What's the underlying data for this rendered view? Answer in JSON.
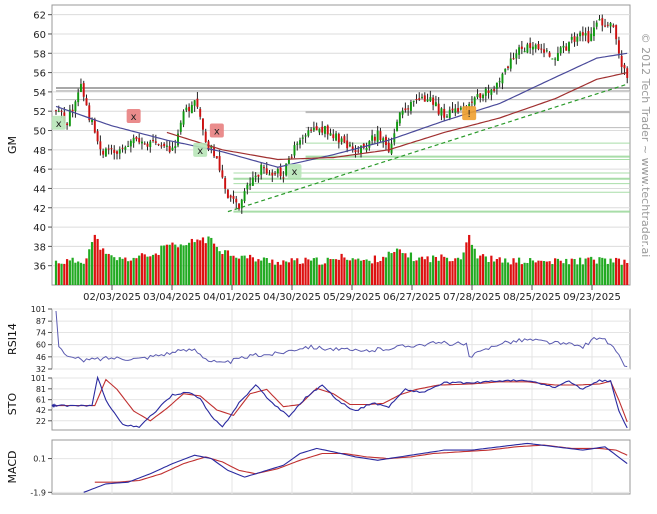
{
  "chart_data": {
    "type": "candlestick",
    "ticker": "GM",
    "watermark": "© 2012 Tech Trader ~ www.techtrader.ai",
    "x_tick_labels": [
      "02/03/2025",
      "03/04/2025",
      "04/01/2025",
      "04/30/2025",
      "05/29/2025",
      "06/27/2025",
      "07/28/2025",
      "08/25/2025",
      "09/23/2025"
    ],
    "price_axis": {
      "ylim": [
        34,
        63
      ],
      "ticks": [
        "36",
        "38",
        "40",
        "42",
        "44",
        "46",
        "48",
        "50",
        "52",
        "54",
        "56",
        "58",
        "60",
        "62"
      ]
    },
    "price_keypoints": [
      [
        0,
        52.0
      ],
      [
        4,
        51.0
      ],
      [
        9,
        54.5
      ],
      [
        12,
        51.5
      ],
      [
        16,
        48.0
      ],
      [
        22,
        47.5
      ],
      [
        27,
        49.0
      ],
      [
        30,
        48.5
      ],
      [
        36,
        48.5
      ],
      [
        42,
        48.0
      ],
      [
        46,
        51.5
      ],
      [
        50,
        53.2
      ],
      [
        54,
        49.0
      ],
      [
        58,
        47.0
      ],
      [
        62,
        43.2
      ],
      [
        66,
        42.2
      ],
      [
        70,
        44.5
      ],
      [
        74,
        46.0
      ],
      [
        78,
        45.8
      ],
      [
        82,
        45.5
      ],
      [
        86,
        48.0
      ],
      [
        90,
        49.5
      ],
      [
        94,
        50.2
      ],
      [
        98,
        50.0
      ],
      [
        104,
        48.5
      ],
      [
        110,
        48.0
      ],
      [
        116,
        49.5
      ],
      [
        120,
        48.0
      ],
      [
        124,
        52.0
      ],
      [
        128,
        52.5
      ],
      [
        132,
        53.5
      ],
      [
        136,
        52.8
      ],
      [
        140,
        51.5
      ],
      [
        144,
        52.5
      ],
      [
        148,
        52.0
      ],
      [
        152,
        53.5
      ],
      [
        156,
        54.0
      ],
      [
        160,
        55.0
      ],
      [
        164,
        57.0
      ],
      [
        168,
        58.5
      ],
      [
        172,
        59.0
      ],
      [
        176,
        58.0
      ],
      [
        180,
        57.8
      ],
      [
        184,
        58.5
      ],
      [
        188,
        60.0
      ],
      [
        192,
        59.5
      ],
      [
        196,
        61.5
      ],
      [
        200,
        61.0
      ],
      [
        202,
        59.5
      ],
      [
        204,
        57.0
      ],
      [
        206,
        55.5
      ]
    ],
    "volume_axis": {
      "ylim": [
        35,
        40
      ],
      "ticks": [
        "36",
        "38",
        "40"
      ]
    },
    "volume_keypoints": [
      [
        0,
        36.4
      ],
      [
        10,
        36.5
      ],
      [
        14,
        39.0
      ],
      [
        18,
        37.0
      ],
      [
        24,
        36.6
      ],
      [
        36,
        37.2
      ],
      [
        40,
        38.2
      ],
      [
        44,
        37.8
      ],
      [
        48,
        38.3
      ],
      [
        52,
        38.8
      ],
      [
        56,
        38.6
      ],
      [
        60,
        37.6
      ],
      [
        66,
        37.0
      ],
      [
        72,
        36.7
      ],
      [
        80,
        36.4
      ],
      [
        100,
        36.5
      ],
      [
        104,
        37.0
      ],
      [
        112,
        36.4
      ],
      [
        124,
        37.5
      ],
      [
        130,
        36.7
      ],
      [
        146,
        36.9
      ],
      [
        149,
        39.2
      ],
      [
        152,
        37.0
      ],
      [
        160,
        36.5
      ],
      [
        180,
        36.4
      ],
      [
        196,
        36.6
      ],
      [
        206,
        36.3
      ]
    ],
    "moving_averages": [
      {
        "color": "#4a4a9a",
        "keypoints": [
          [
            0,
            52.5
          ],
          [
            20,
            50.5
          ],
          [
            40,
            49.0
          ],
          [
            60,
            47.8
          ],
          [
            80,
            46.2
          ],
          [
            100,
            47.5
          ],
          [
            120,
            49.0
          ],
          [
            140,
            51.0
          ],
          [
            160,
            52.8
          ],
          [
            180,
            55.5
          ],
          [
            195,
            57.5
          ],
          [
            206,
            58.0
          ]
        ]
      },
      {
        "color": "#a03030",
        "keypoints": [
          [
            40,
            49.8
          ],
          [
            60,
            48.0
          ],
          [
            80,
            47.0
          ],
          [
            100,
            47.2
          ],
          [
            120,
            48.0
          ],
          [
            140,
            49.8
          ],
          [
            160,
            51.3
          ],
          [
            180,
            53.3
          ],
          [
            195,
            55.3
          ],
          [
            206,
            56.0
          ]
        ]
      }
    ],
    "support_resistance_levels": [
      54.4,
      54.1,
      53.2,
      51.9,
      50.3,
      48.7,
      47.3,
      47.0,
      45.6,
      45.0,
      44.5,
      43.6,
      41.6
    ],
    "trendline": {
      "from": [
        62,
        41.6
      ],
      "to": [
        206,
        54.8
      ],
      "color": "#2a9a2a"
    },
    "signals": [
      {
        "kind": "sell",
        "label": "x",
        "x": 28,
        "y": 51.5,
        "color": "#e88080"
      },
      {
        "kind": "sell",
        "label": "x",
        "x": 58,
        "y": 50.0,
        "color": "#e88080"
      },
      {
        "kind": "buy",
        "label": "x",
        "x": 1,
        "y": 50.8,
        "color": "#b8e6b8"
      },
      {
        "kind": "buy",
        "label": "x",
        "x": 52,
        "y": 48.0,
        "color": "#b8e6b8"
      },
      {
        "kind": "buy",
        "label": "x",
        "x": 86,
        "y": 45.8,
        "color": "#b8e6b8"
      },
      {
        "kind": "alert",
        "label": "!",
        "x": 149,
        "y": 51.8,
        "color": "#f0a030"
      }
    ],
    "rsi": {
      "label": "RSI14",
      "ticks": [
        "101",
        "87",
        "74",
        "60",
        "46",
        "32"
      ],
      "ylim": [
        32,
        101
      ],
      "keypoints": [
        [
          0,
          101
        ],
        [
          1,
          60
        ],
        [
          4,
          46
        ],
        [
          10,
          42
        ],
        [
          20,
          45
        ],
        [
          30,
          44
        ],
        [
          40,
          50
        ],
        [
          50,
          55
        ],
        [
          55,
          42
        ],
        [
          60,
          38
        ],
        [
          70,
          47
        ],
        [
          80,
          50
        ],
        [
          90,
          58
        ],
        [
          100,
          55
        ],
        [
          110,
          52
        ],
        [
          120,
          56
        ],
        [
          130,
          60
        ],
        [
          140,
          62
        ],
        [
          148,
          60
        ],
        [
          149,
          45
        ],
        [
          160,
          62
        ],
        [
          170,
          66
        ],
        [
          180,
          62
        ],
        [
          190,
          58
        ],
        [
          196,
          70
        ],
        [
          200,
          60
        ],
        [
          206,
          33
        ]
      ]
    },
    "stochastic": {
      "label": "STO",
      "ticks": [
        "101",
        "81",
        "61",
        "42",
        "22"
      ],
      "ylim": [
        5,
        101
      ],
      "k_keypoints": [
        [
          -15,
          50
        ],
        [
          13,
          50
        ],
        [
          15,
          101
        ],
        [
          18,
          60
        ],
        [
          24,
          15
        ],
        [
          30,
          10
        ],
        [
          36,
          40
        ],
        [
          42,
          70
        ],
        [
          48,
          75
        ],
        [
          52,
          62
        ],
        [
          56,
          30
        ],
        [
          60,
          10
        ],
        [
          66,
          55
        ],
        [
          72,
          88
        ],
        [
          78,
          55
        ],
        [
          84,
          30
        ],
        [
          90,
          65
        ],
        [
          96,
          88
        ],
        [
          102,
          58
        ],
        [
          108,
          40
        ],
        [
          114,
          55
        ],
        [
          120,
          48
        ],
        [
          126,
          80
        ],
        [
          132,
          74
        ],
        [
          140,
          92
        ],
        [
          150,
          92
        ],
        [
          160,
          96
        ],
        [
          170,
          96
        ],
        [
          180,
          84
        ],
        [
          185,
          95
        ],
        [
          190,
          80
        ],
        [
          196,
          96
        ],
        [
          200,
          95
        ],
        [
          203,
          40
        ],
        [
          206,
          8
        ]
      ],
      "d_keypoints": [
        [
          -15,
          50
        ],
        [
          14,
          50
        ],
        [
          18,
          98
        ],
        [
          22,
          80
        ],
        [
          28,
          40
        ],
        [
          34,
          22
        ],
        [
          40,
          45
        ],
        [
          46,
          72
        ],
        [
          52,
          68
        ],
        [
          58,
          42
        ],
        [
          64,
          32
        ],
        [
          70,
          72
        ],
        [
          76,
          80
        ],
        [
          82,
          48
        ],
        [
          88,
          52
        ],
        [
          94,
          82
        ],
        [
          100,
          72
        ],
        [
          106,
          52
        ],
        [
          112,
          52
        ],
        [
          118,
          54
        ],
        [
          124,
          70
        ],
        [
          130,
          80
        ],
        [
          138,
          88
        ],
        [
          150,
          90
        ],
        [
          160,
          94
        ],
        [
          170,
          94
        ],
        [
          180,
          88
        ],
        [
          188,
          88
        ],
        [
          196,
          90
        ],
        [
          200,
          95
        ],
        [
          203,
          60
        ],
        [
          206,
          20
        ]
      ]
    },
    "macd": {
      "label": "MACD",
      "ticks": [
        "0.1",
        "-1.9"
      ],
      "ylim": [
        -2.0,
        1.2
      ],
      "macd_keypoints": [
        [
          10,
          -1.9
        ],
        [
          18,
          -1.4
        ],
        [
          26,
          -1.3
        ],
        [
          34,
          -0.8
        ],
        [
          42,
          -0.2
        ],
        [
          50,
          0.3
        ],
        [
          56,
          0.1
        ],
        [
          62,
          -0.6
        ],
        [
          68,
          -1.0
        ],
        [
          74,
          -0.7
        ],
        [
          82,
          -0.3
        ],
        [
          88,
          0.4
        ],
        [
          94,
          0.7
        ],
        [
          100,
          0.5
        ],
        [
          108,
          0.2
        ],
        [
          116,
          0.0
        ],
        [
          124,
          0.2
        ],
        [
          132,
          0.4
        ],
        [
          140,
          0.6
        ],
        [
          150,
          0.6
        ],
        [
          160,
          0.8
        ],
        [
          170,
          1.0
        ],
        [
          180,
          0.8
        ],
        [
          190,
          0.6
        ],
        [
          198,
          0.8
        ],
        [
          202,
          0.3
        ],
        [
          206,
          -0.2
        ]
      ],
      "signal_keypoints": [
        [
          14,
          -1.3
        ],
        [
          22,
          -1.3
        ],
        [
          30,
          -1.2
        ],
        [
          38,
          -0.8
        ],
        [
          46,
          -0.2
        ],
        [
          54,
          0.2
        ],
        [
          60,
          -0.1
        ],
        [
          66,
          -0.6
        ],
        [
          72,
          -0.8
        ],
        [
          80,
          -0.5
        ],
        [
          88,
          0.0
        ],
        [
          96,
          0.4
        ],
        [
          104,
          0.4
        ],
        [
          112,
          0.2
        ],
        [
          120,
          0.1
        ],
        [
          128,
          0.2
        ],
        [
          136,
          0.4
        ],
        [
          146,
          0.5
        ],
        [
          156,
          0.6
        ],
        [
          166,
          0.8
        ],
        [
          176,
          0.9
        ],
        [
          186,
          0.7
        ],
        [
          196,
          0.7
        ],
        [
          202,
          0.6
        ],
        [
          206,
          0.3
        ]
      ]
    }
  }
}
